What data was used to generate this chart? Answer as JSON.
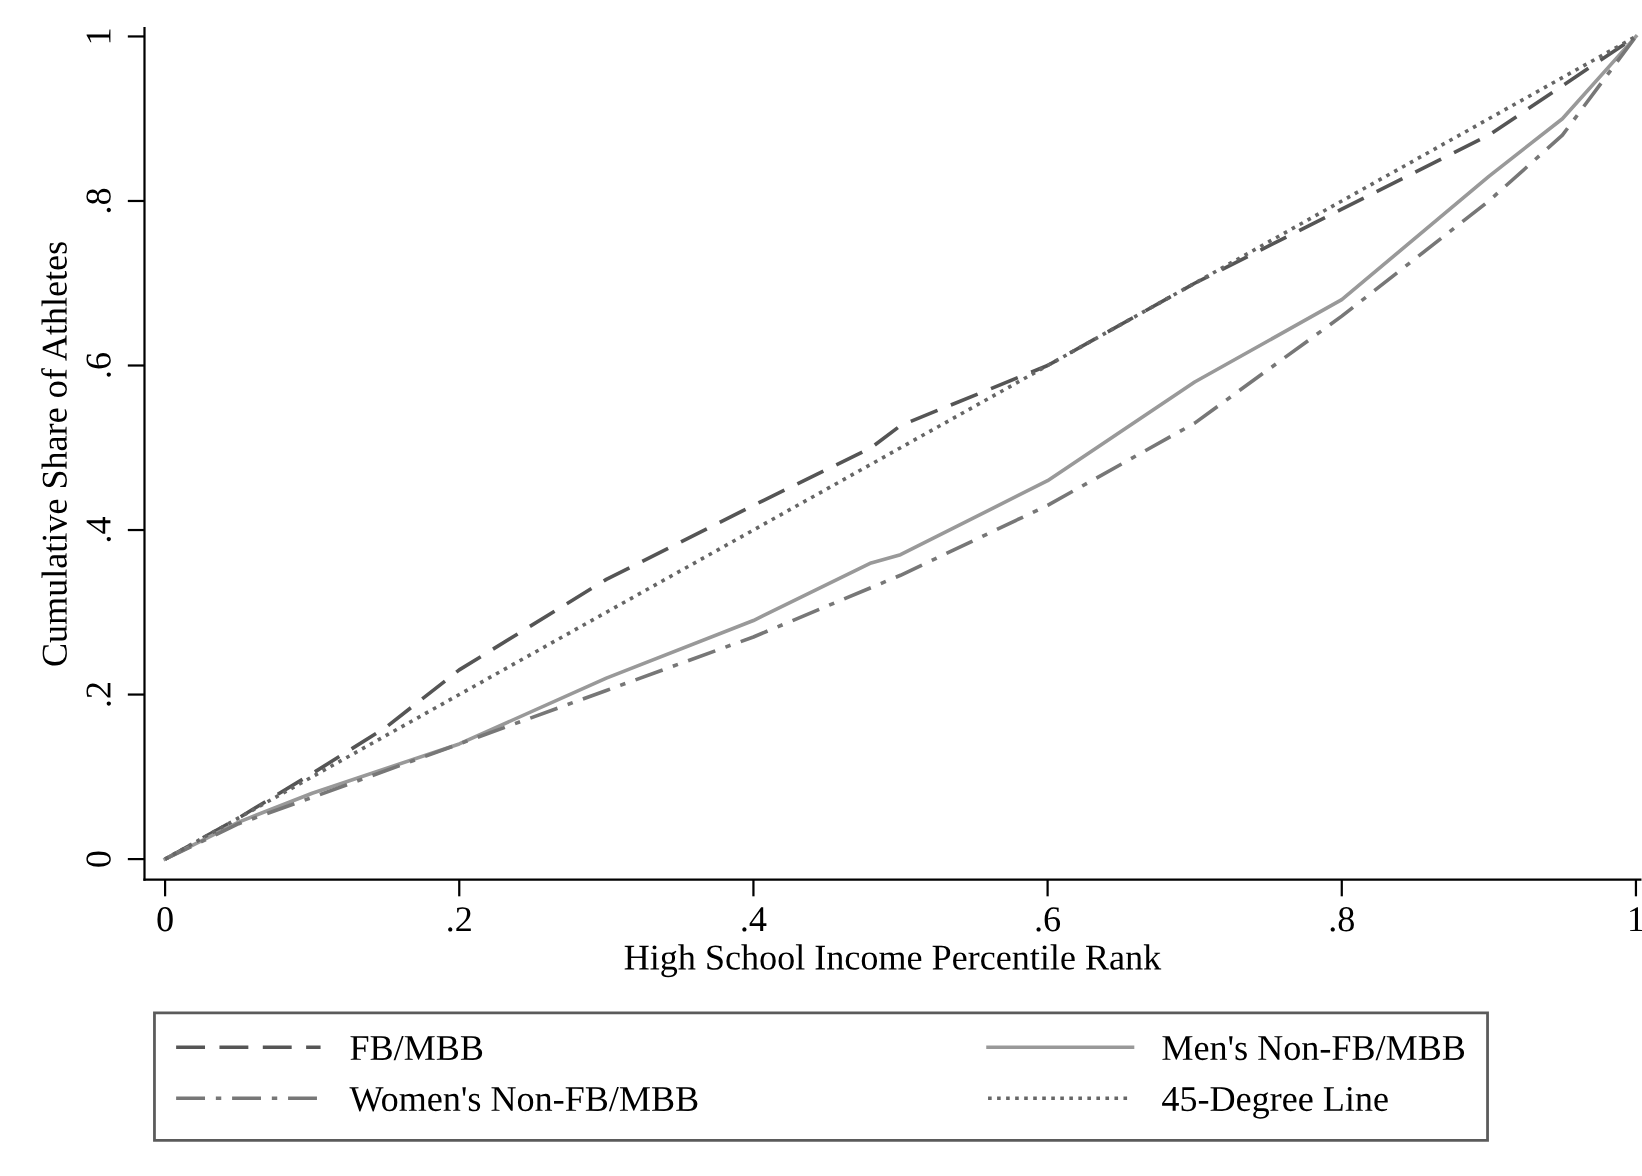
{
  "chart_data": {
    "type": "line",
    "xlabel": "High School Income Percentile Rank",
    "ylabel": "Cumulative Share of Athletes",
    "xlim": [
      -0.014,
      1.003
    ],
    "ylim": [
      -0.025,
      1.01
    ],
    "xticks": [
      0,
      {
        "value": 0.2,
        "label": ".2"
      },
      {
        "value": 0.4,
        "label": ".4"
      },
      {
        "value": 0.6,
        "label": ".6"
      },
      {
        "value": 0.8,
        "label": ".8"
      },
      1
    ],
    "yticks": [
      0,
      {
        "value": 0.2,
        "label": ".2"
      },
      {
        "value": 0.4,
        "label": ".4"
      },
      {
        "value": 0.6,
        "label": ".6"
      },
      {
        "value": 0.8,
        "label": ".8"
      },
      1
    ],
    "grid": false,
    "legend": "bottom",
    "marker": "none",
    "series": [
      {
        "name": "FB/MBB",
        "color": "#555555",
        "line_style": "dashed",
        "x": [
          0,
          0.05,
          0.1,
          0.15,
          0.2,
          0.3,
          0.4,
          0.48,
          0.5,
          0.6,
          0.7,
          0.8,
          0.9,
          1
        ],
        "values": [
          0,
          0.05,
          0.104,
          0.16,
          0.23,
          0.34,
          0.43,
          0.5,
          0.527,
          0.6,
          0.7,
          0.79,
          0.88,
          1
        ]
      },
      {
        "name": "Men's Non-FB/MBB",
        "color": "#999999",
        "line_style": "solid",
        "x": [
          0,
          0.05,
          0.1,
          0.2,
          0.3,
          0.4,
          0.48,
          0.5,
          0.6,
          0.7,
          0.8,
          0.9,
          0.95,
          1
        ],
        "values": [
          0,
          0.045,
          0.08,
          0.14,
          0.22,
          0.29,
          0.36,
          0.37,
          0.46,
          0.58,
          0.68,
          0.83,
          0.9,
          1
        ]
      },
      {
        "name": "Women's Non-FB/MBB",
        "color": "#777777",
        "line_style": "dashdot",
        "x": [
          0,
          0.05,
          0.1,
          0.2,
          0.3,
          0.4,
          0.48,
          0.5,
          0.6,
          0.7,
          0.8,
          0.9,
          0.95,
          1
        ],
        "values": [
          0,
          0.043,
          0.075,
          0.14,
          0.205,
          0.27,
          0.33,
          0.345,
          0.43,
          0.53,
          0.66,
          0.8,
          0.88,
          1
        ]
      },
      {
        "name": "45-Degree Line",
        "color": "#666666",
        "line_style": "dotted",
        "x": [
          0,
          1
        ],
        "values": [
          0,
          1
        ]
      }
    ]
  }
}
